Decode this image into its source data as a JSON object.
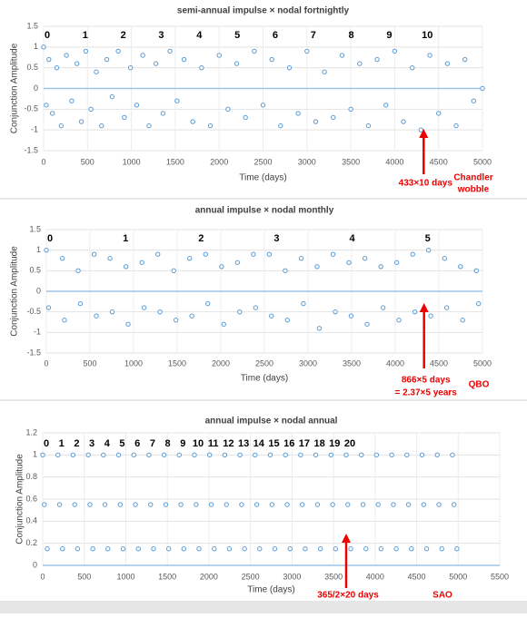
{
  "chart_data": [
    {
      "type": "scatter",
      "title": "semi-annual impulse × nodal fortnightly",
      "xlabel": "Time (days)",
      "ylabel": "Conjunction Amplitude",
      "color": "#5b9bd5",
      "grid": true,
      "xlim": [
        0,
        5000
      ],
      "ylim": [
        -1.5,
        1.5
      ],
      "xticks": [
        0,
        500,
        1000,
        1500,
        2000,
        2500,
        3000,
        3500,
        4000,
        4500,
        5000
      ],
      "yticks": [
        -1.5,
        -1,
        -0.5,
        0,
        0.5,
        1,
        1.5
      ],
      "x": [
        0,
        30,
        60,
        100,
        150,
        200,
        260,
        320,
        380,
        430,
        480,
        540,
        600,
        660,
        720,
        780,
        850,
        920,
        990,
        1060,
        1130,
        1200,
        1280,
        1360,
        1440,
        1520,
        1600,
        1700,
        1800,
        1900,
        2000,
        2100,
        2200,
        2300,
        2400,
        2500,
        2600,
        2700,
        2800,
        2900,
        3000,
        3100,
        3200,
        3300,
        3400,
        3500,
        3600,
        3700,
        3800,
        3900,
        4000,
        4100,
        4200,
        4300,
        4400,
        4500,
        4600,
        4700,
        4800,
        4900,
        5000
      ],
      "values": [
        1,
        -0.4,
        0.7,
        -0.6,
        0.5,
        -0.9,
        0.8,
        -0.3,
        0.6,
        -0.8,
        0.9,
        -0.5,
        0.4,
        -0.9,
        0.7,
        -0.2,
        0.9,
        -0.7,
        0.5,
        -0.4,
        0.8,
        -0.9,
        0.6,
        -0.6,
        0.9,
        -0.3,
        0.7,
        -0.8,
        0.5,
        -0.9,
        0.8,
        -0.5,
        0.6,
        -0.7,
        0.9,
        -0.4,
        0.7,
        -0.9,
        0.5,
        -0.6,
        0.9,
        -0.8,
        0.4,
        -0.7,
        0.8,
        -0.5,
        0.6,
        -0.9,
        0.7,
        -0.4,
        0.9,
        -0.8,
        0.5,
        -1,
        0.8,
        -0.6,
        0.6,
        -0.9,
        0.7,
        -0.3,
        0
      ],
      "cycle_labels": [
        {
          "text": "0",
          "x": 0
        },
        {
          "text": "1",
          "x": 433
        },
        {
          "text": "2",
          "x": 866
        },
        {
          "text": "3",
          "x": 1299
        },
        {
          "text": "4",
          "x": 1732
        },
        {
          "text": "5",
          "x": 2165
        },
        {
          "text": "6",
          "x": 2598
        },
        {
          "text": "7",
          "x": 3031
        },
        {
          "text": "8",
          "x": 3464
        },
        {
          "text": "9",
          "x": 3897
        },
        {
          "text": "10",
          "x": 4330
        }
      ],
      "arrow": {
        "x": 4330,
        "label": [
          "433×10 days"
        ]
      },
      "side_label": [
        "Chandler",
        "wobble"
      ]
    },
    {
      "type": "scatter",
      "title": "annual impulse × nodal monthly",
      "xlabel": "Time (days)",
      "ylabel": "Conjunction Amplitude",
      "color": "#5b9bd5",
      "grid": true,
      "xlim": [
        0,
        5000
      ],
      "ylim": [
        -1.5,
        1.5
      ],
      "xticks": [
        0,
        500,
        1000,
        1500,
        2000,
        2500,
        3000,
        3500,
        4000,
        4500,
        5000
      ],
      "yticks": [
        -1.5,
        -1,
        -0.5,
        0,
        0.5,
        1,
        1.5
      ],
      "x": [
        0,
        25,
        183,
        208,
        365,
        390,
        548,
        573,
        730,
        755,
        913,
        938,
        1096,
        1121,
        1278,
        1303,
        1461,
        1486,
        1643,
        1668,
        1826,
        1851,
        2009,
        2034,
        2191,
        2216,
        2374,
        2399,
        2556,
        2581,
        2739,
        2764,
        2922,
        2947,
        3104,
        3129,
        3287,
        3312,
        3469,
        3494,
        3652,
        3677,
        3835,
        3860,
        4017,
        4042,
        4200,
        4225,
        4382,
        4407,
        4565,
        4590,
        4748,
        4773,
        4930,
        4955
      ],
      "values": [
        1,
        -0.4,
        0.8,
        -0.7,
        0.5,
        -0.3,
        0.9,
        -0.6,
        0.8,
        -0.5,
        0.6,
        -0.8,
        0.7,
        -0.4,
        0.9,
        -0.5,
        0.5,
        -0.7,
        0.8,
        -0.6,
        0.9,
        -0.3,
        0.6,
        -0.8,
        0.7,
        -0.5,
        0.9,
        -0.4,
        0.9,
        -0.6,
        0.5,
        -0.7,
        0.8,
        -0.3,
        0.6,
        -0.9,
        0.9,
        -0.5,
        0.7,
        -0.6,
        0.8,
        -0.8,
        0.6,
        -0.4,
        0.7,
        -0.7,
        0.9,
        -0.5,
        1,
        -0.6,
        0.8,
        -0.4,
        0.6,
        -0.7,
        0.5,
        -0.3
      ],
      "cycle_labels": [
        {
          "text": "0",
          "x": 0
        },
        {
          "text": "1",
          "x": 866
        },
        {
          "text": "2",
          "x": 1732
        },
        {
          "text": "3",
          "x": 2598
        },
        {
          "text": "4",
          "x": 3464
        },
        {
          "text": "5",
          "x": 4330
        }
      ],
      "arrow": {
        "x": 4330,
        "label": [
          "866×5 days",
          "= 2.37×5 years"
        ]
      },
      "side_label": [
        "QBO"
      ]
    },
    {
      "type": "scatter",
      "title": "annual impulse × nodal annual",
      "xlabel": "Time (days)",
      "ylabel": "Conjunction Amplitude",
      "color": "#5b9bd5",
      "grid": true,
      "xlim": [
        0,
        5500
      ],
      "ylim": [
        0,
        1.2
      ],
      "xticks": [
        0,
        500,
        1000,
        1500,
        2000,
        2500,
        3000,
        3500,
        4000,
        4500,
        5000,
        5500
      ],
      "yticks": [
        0,
        0.2,
        0.4,
        0.6,
        0.8,
        1,
        1.2
      ],
      "x": [
        0,
        20,
        55,
        183,
        203,
        238,
        365,
        385,
        420,
        548,
        568,
        603,
        730,
        750,
        785,
        913,
        933,
        968,
        1096,
        1116,
        1151,
        1278,
        1298,
        1333,
        1461,
        1481,
        1516,
        1643,
        1663,
        1698,
        1826,
        1846,
        1881,
        2009,
        2029,
        2064,
        2191,
        2211,
        2246,
        2374,
        2394,
        2429,
        2556,
        2576,
        2611,
        2739,
        2759,
        2794,
        2922,
        2942,
        2977,
        3104,
        3124,
        3159,
        3287,
        3307,
        3342,
        3469,
        3489,
        3524,
        3652,
        3672,
        3707,
        3835,
        3855,
        3890,
        4017,
        4037,
        4072,
        4200,
        4220,
        4255,
        4382,
        4402,
        4437,
        4565,
        4585,
        4620,
        4748,
        4768,
        4803,
        4930,
        4950,
        4985
      ],
      "values": [
        1,
        0.55,
        0.15,
        1,
        0.55,
        0.15,
        1,
        0.55,
        0.15,
        1,
        0.55,
        0.15,
        1,
        0.55,
        0.15,
        1,
        0.55,
        0.15,
        1,
        0.55,
        0.15,
        1,
        0.55,
        0.15,
        1,
        0.55,
        0.15,
        1,
        0.55,
        0.15,
        1,
        0.55,
        0.15,
        1,
        0.55,
        0.15,
        1,
        0.55,
        0.15,
        1,
        0.55,
        0.15,
        1,
        0.55,
        0.15,
        1,
        0.55,
        0.15,
        1,
        0.55,
        0.15,
        1,
        0.55,
        0.15,
        1,
        0.55,
        0.15,
        1,
        0.55,
        0.15,
        1,
        0.55,
        0.15,
        1,
        0.55,
        0.15,
        1,
        0.55,
        0.15,
        1,
        0.55,
        0.15,
        1,
        0.55,
        0.15,
        1,
        0.55,
        0.15,
        1,
        0.55,
        0.15,
        1,
        0.55,
        0.15
      ],
      "cycle_labels": [
        {
          "text": "0",
          "x": 0
        },
        {
          "text": "1",
          "x": 183
        },
        {
          "text": "2",
          "x": 365
        },
        {
          "text": "3",
          "x": 548
        },
        {
          "text": "4",
          "x": 730
        },
        {
          "text": "5",
          "x": 913
        },
        {
          "text": "6",
          "x": 1096
        },
        {
          "text": "7",
          "x": 1278
        },
        {
          "text": "8",
          "x": 1461
        },
        {
          "text": "9",
          "x": 1643
        },
        {
          "text": "10",
          "x": 1826
        },
        {
          "text": "11",
          "x": 2009
        },
        {
          "text": "12",
          "x": 2191
        },
        {
          "text": "13",
          "x": 2374
        },
        {
          "text": "14",
          "x": 2556
        },
        {
          "text": "15",
          "x": 2739
        },
        {
          "text": "16",
          "x": 2922
        },
        {
          "text": "17",
          "x": 3104
        },
        {
          "text": "18",
          "x": 3287
        },
        {
          "text": "19",
          "x": 3469
        },
        {
          "text": "20",
          "x": 3652
        }
      ],
      "arrow": {
        "x": 3652,
        "label": [
          "365/2×20 days"
        ]
      },
      "side_label": [
        "SAO"
      ]
    }
  ]
}
